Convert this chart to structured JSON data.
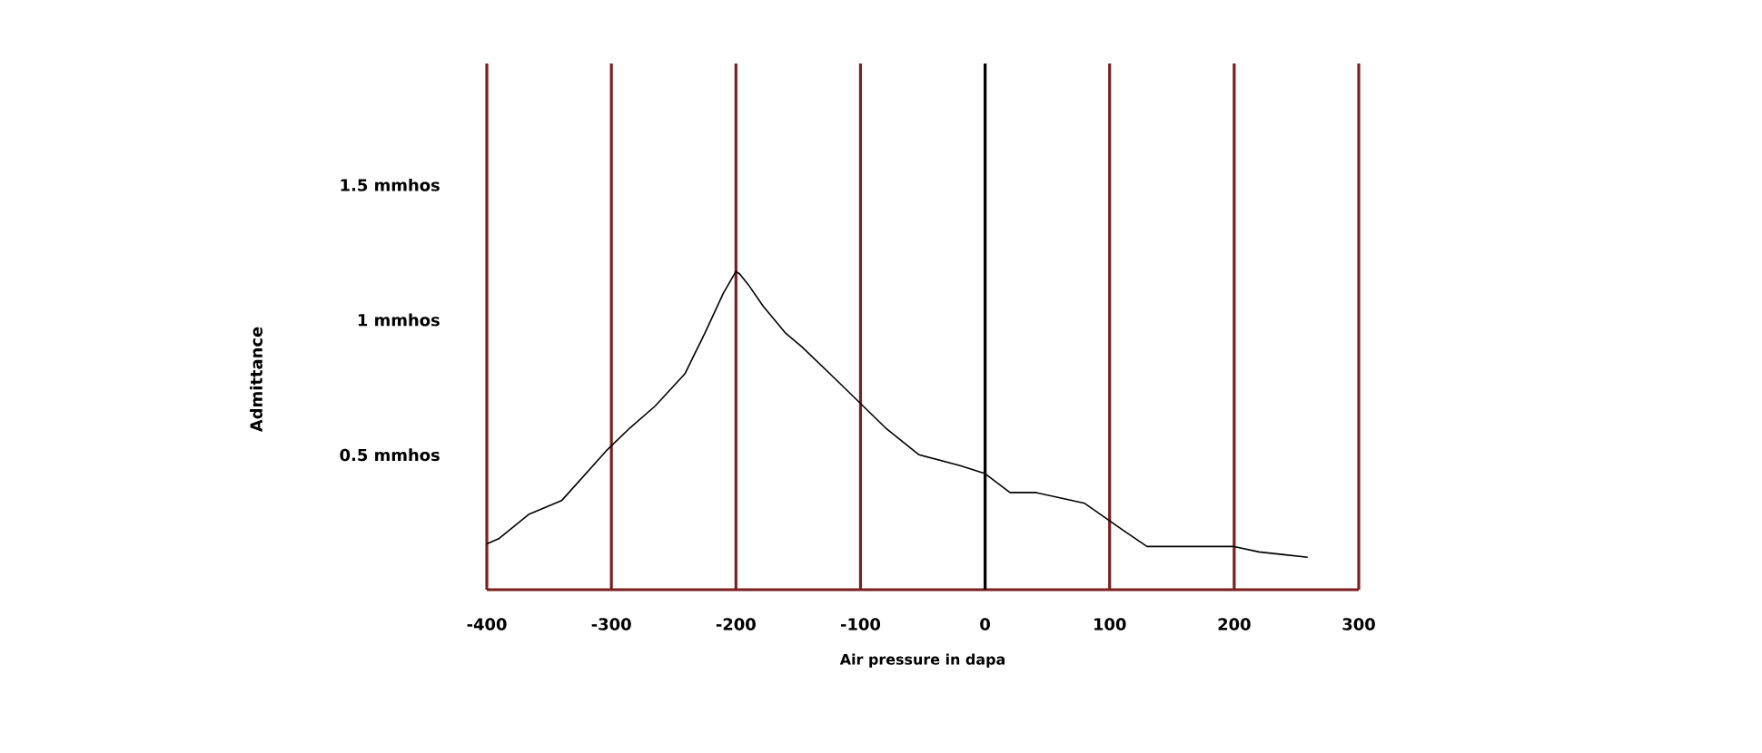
{
  "chart_data": {
    "type": "line",
    "xlabel": "Air pressure in dapa",
    "ylabel": "Admittance",
    "xlim": [
      -400,
      300
    ],
    "ylim": [
      0,
      1.95
    ],
    "xticks": [
      -400,
      -300,
      -200,
      -100,
      0,
      100,
      200,
      300
    ],
    "yticks": [
      {
        "value": 0.5,
        "label": "0.5 mmhos"
      },
      {
        "value": 1,
        "label": "1 mmhos"
      },
      {
        "value": 1.5,
        "label": "1.5 mmhos"
      }
    ],
    "grid": "x",
    "marker": "none",
    "line_style": "solid",
    "ref_lines": [
      {
        "axis": "x",
        "value": 0,
        "color": "#000000"
      }
    ],
    "series": [
      {
        "color": "#000000",
        "x": [
          -400,
          -390,
          -366,
          -340,
          -303,
          -285,
          -265,
          -241,
          -225,
          -210,
          -200,
          -197,
          -190,
          -178,
          -160,
          -147,
          -120,
          -100,
          -80,
          -53,
          -20,
          0,
          20,
          41,
          80,
          111,
          130,
          142,
          200,
          220,
          240,
          259
        ],
        "values": [
          0.17,
          0.19,
          0.28,
          0.33,
          0.52,
          0.6,
          0.68,
          0.8,
          0.95,
          1.1,
          1.18,
          1.17,
          1.13,
          1.05,
          0.95,
          0.9,
          0.78,
          0.69,
          0.6,
          0.5,
          0.46,
          0.43,
          0.36,
          0.36,
          0.32,
          0.22,
          0.16,
          0.16,
          0.16,
          0.14,
          0.13,
          0.12
        ]
      }
    ]
  }
}
